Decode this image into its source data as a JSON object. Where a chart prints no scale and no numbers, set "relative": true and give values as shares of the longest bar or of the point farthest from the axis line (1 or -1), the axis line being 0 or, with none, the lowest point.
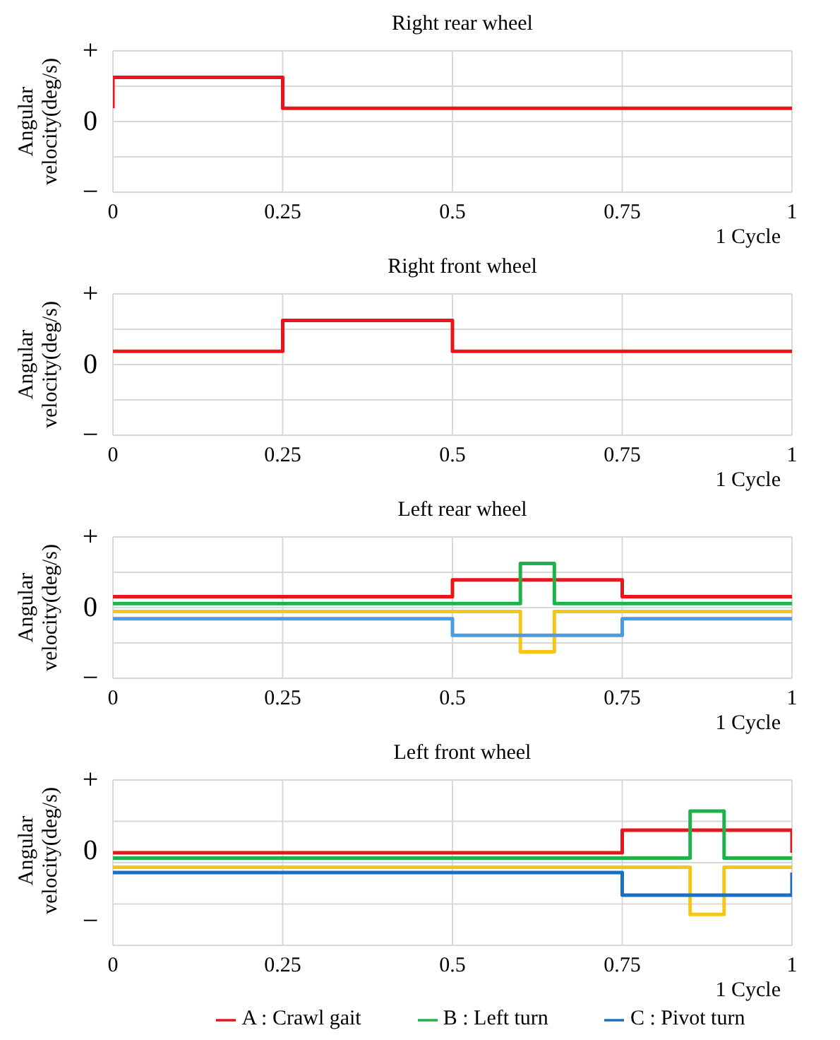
{
  "chart_data": [
    {
      "type": "line",
      "title": "Right rear wheel",
      "xlabel": "1 Cycle",
      "ylabel": "Angular velocity(deg/s)",
      "annotations": [
        "+",
        "0",
        "−"
      ],
      "relative": true,
      "xlim": [
        0,
        1
      ],
      "xticks": [
        0,
        0.25,
        0.5,
        0.75,
        1
      ],
      "grid": true,
      "legend": false,
      "series": [
        {
          "color": "#e8161b",
          "x": [
            0,
            0,
            0.25,
            0.25,
            1
          ],
          "values": [
            0.3,
            1,
            1,
            0.3,
            0.3
          ]
        }
      ]
    },
    {
      "type": "line",
      "title": "Right front wheel",
      "xlabel": "1 Cycle",
      "ylabel": "Angular velocity(deg/s)",
      "annotations": [
        "+",
        "0",
        "−"
      ],
      "relative": true,
      "xlim": [
        0,
        1
      ],
      "xticks": [
        0,
        0.25,
        0.5,
        0.75,
        1
      ],
      "grid": true,
      "legend": false,
      "series": [
        {
          "color": "#e8161b",
          "x": [
            0,
            0.25,
            0.25,
            0.5,
            0.5,
            1
          ],
          "values": [
            0.3,
            0.3,
            1,
            1,
            0.3,
            0.3
          ]
        }
      ]
    },
    {
      "type": "line",
      "title": "Left rear wheel",
      "xlabel": "1 Cycle",
      "ylabel": "Angular velocity(deg/s)",
      "annotations": [
        "+",
        "0",
        "−"
      ],
      "relative": true,
      "xlim": [
        0,
        1
      ],
      "xticks": [
        0,
        0.25,
        0.5,
        0.75,
        1
      ],
      "grid": true,
      "legend": false,
      "series": [
        {
          "color": "#e8161b",
          "x": [
            0,
            0.5,
            0.5,
            0.75,
            0.75,
            1
          ],
          "values": [
            0.25,
            0.25,
            0.63,
            0.63,
            0.25,
            0.25
          ]
        },
        {
          "color": "#1db34a",
          "x": [
            0,
            0.6,
            0.6,
            0.65,
            0.65,
            1
          ],
          "values": [
            0.09,
            0.09,
            1,
            1,
            0.09,
            0.09
          ]
        },
        {
          "color": "#f5c518",
          "x": [
            0,
            0.6,
            0.6,
            0.65,
            0.65,
            1
          ],
          "values": [
            -0.09,
            -0.09,
            -1,
            -1,
            -0.09,
            -0.09
          ]
        },
        {
          "color": "#4a9be0",
          "x": [
            0,
            0.5,
            0.5,
            0.75,
            0.75,
            1
          ],
          "values": [
            -0.25,
            -0.25,
            -0.63,
            -0.63,
            -0.25,
            -0.25
          ]
        }
      ]
    },
    {
      "type": "line",
      "title": "Left front wheel",
      "xlabel": "1 Cycle",
      "ylabel": "Angular velocity(deg/s)",
      "annotations": [
        "+",
        "0",
        "−"
      ],
      "relative": true,
      "xlim": [
        0,
        1
      ],
      "xticks": [
        0,
        0.25,
        0.5,
        0.75,
        1
      ],
      "grid": true,
      "legend": "bottom",
      "series": [
        {
          "name": "A : Crawl gait",
          "color": "#e8161b",
          "x": [
            0,
            0.75,
            0.75,
            1,
            1
          ],
          "values": [
            0.19,
            0.19,
            0.63,
            0.63,
            0.19
          ]
        },
        {
          "name": "B : Left turn",
          "color": "#1db34a",
          "x": [
            0,
            0.85,
            0.85,
            0.9,
            0.9,
            1
          ],
          "values": [
            0.09,
            0.09,
            1,
            1,
            0.09,
            0.09
          ]
        },
        {
          "color": "#f5c518",
          "x": [
            0,
            0.85,
            0.85,
            0.9,
            0.9,
            1
          ],
          "values": [
            -0.09,
            -0.09,
            -1,
            -1,
            -0.09,
            -0.09
          ]
        },
        {
          "name": "C : Pivot turn",
          "color": "#1a6fc0",
          "x": [
            0,
            0.75,
            0.75,
            1,
            1
          ],
          "values": [
            -0.19,
            -0.19,
            -0.63,
            -0.63,
            -0.19
          ]
        }
      ]
    }
  ]
}
